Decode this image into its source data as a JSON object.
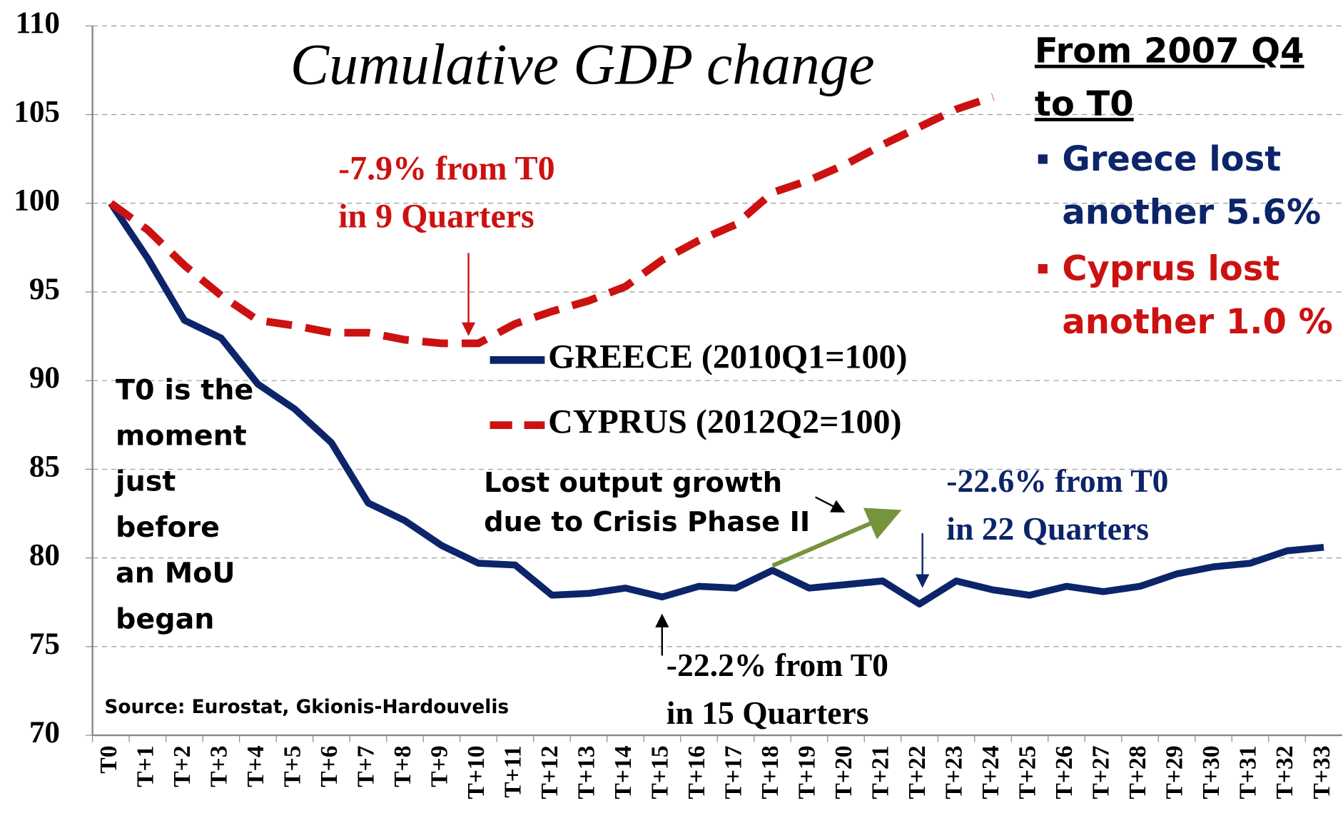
{
  "chart_data": {
    "type": "line",
    "title": "Cumulative GDP change",
    "categories": [
      "T0",
      "T+1",
      "T+2",
      "T+3",
      "T+4",
      "T+5",
      "T+6",
      "T+7",
      "T+8",
      "T+9",
      "T+10",
      "T+11",
      "T+12",
      "T+13",
      "T+14",
      "T+15",
      "T+16",
      "T+17",
      "T+18",
      "T+19",
      "T+20",
      "T+21",
      "T+22",
      "T+23",
      "T+24",
      "T+25",
      "T+26",
      "T+27",
      "T+28",
      "T+29",
      "T+30",
      "T+31",
      "T+32",
      "T+33"
    ],
    "series": [
      {
        "name": "GREECE (2010Q1=100)",
        "color": "#0c2469",
        "dash": false,
        "values": [
          100,
          96.9,
          93.4,
          92.4,
          89.8,
          88.4,
          86.5,
          83.1,
          82.1,
          80.7,
          79.7,
          79.6,
          77.9,
          78.0,
          78.3,
          77.8,
          78.4,
          78.3,
          79.3,
          78.3,
          78.5,
          78.7,
          77.4,
          78.7,
          78.2,
          77.9,
          78.4,
          78.1,
          78.4,
          79.1,
          79.5,
          79.7,
          80.4,
          80.6
        ]
      },
      {
        "name": "CYPRUS (2012Q2=100)",
        "color": "#cc1111",
        "dash": true,
        "values": [
          100,
          98.5,
          96.5,
          94.8,
          93.4,
          93.1,
          92.7,
          92.7,
          92.3,
          92.1,
          92.1,
          93.2,
          93.9,
          94.5,
          95.3,
          96.8,
          97.9,
          98.8,
          100.6,
          101.3,
          102.2,
          103.3,
          104.3,
          105.3,
          106.0,
          null,
          null,
          null,
          null,
          null,
          null,
          null,
          null,
          null
        ]
      }
    ],
    "ylim": [
      70,
      110
    ],
    "yticks": [
      70,
      75,
      80,
      85,
      90,
      95,
      100,
      105,
      110
    ],
    "grid": true,
    "annotations": {
      "cyprus_trough": [
        "-7.9% from T0",
        "in 9 Quarters"
      ],
      "greece_trough": [
        "-22.2%  from T0",
        "in 15 Quarters"
      ],
      "greece_latest": [
        "-22.6% from T0",
        "in 22 Quarters"
      ],
      "lost_output": [
        "Lost output growth",
        "due to Crisis Phase II"
      ],
      "t0_note": [
        "T0 is the",
        "moment",
        "just",
        "before",
        "an MoU",
        "began"
      ],
      "source": "Source:  Eurostat, Gkionis-Hardouvelis",
      "side_heading": [
        "From 2007 Q4",
        "to T0"
      ],
      "greece_side": [
        "Greece lost",
        "another  5.6%"
      ],
      "cyprus_side": [
        "Cyprus lost",
        "another 1.0 %"
      ]
    }
  }
}
